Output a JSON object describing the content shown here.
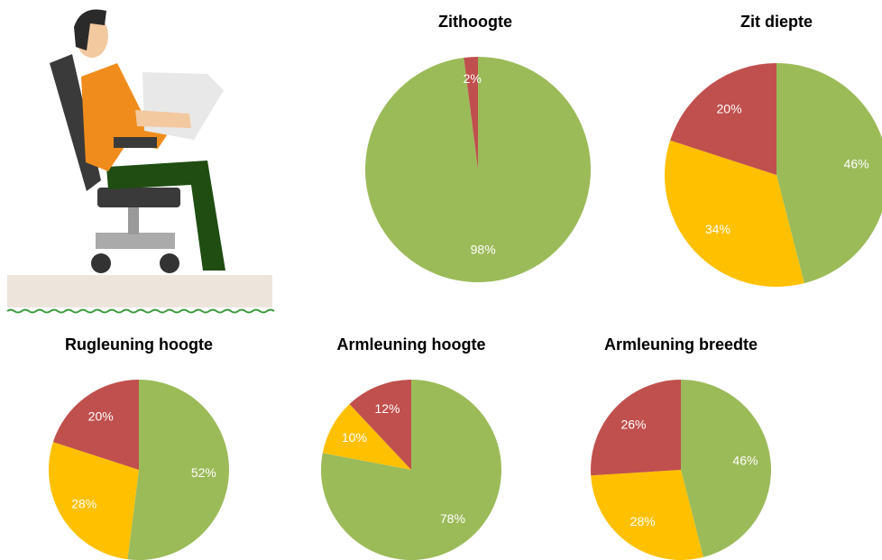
{
  "chart_data": [
    {
      "type": "pie",
      "title": "Zithoogte",
      "values": [
        98,
        2
      ],
      "value_labels": [
        "98%",
        "2%"
      ],
      "colors": [
        "#9bbb59",
        "#c0504d"
      ]
    },
    {
      "type": "pie",
      "title": "Zit diepte",
      "values": [
        46,
        34,
        20
      ],
      "value_labels": [
        "46%",
        "34%",
        "20%"
      ],
      "colors": [
        "#9bbb59",
        "#ffc000",
        "#c0504d"
      ]
    },
    {
      "type": "pie",
      "title": "Rugleuning hoogte",
      "values": [
        52,
        28,
        20
      ],
      "value_labels": [
        "52%",
        "28%",
        "20%"
      ],
      "colors": [
        "#9bbb59",
        "#ffc000",
        "#c0504d"
      ]
    },
    {
      "type": "pie",
      "title": "Armleuning hoogte",
      "values": [
        78,
        10,
        12
      ],
      "value_labels": [
        "78%",
        "10%",
        "12%"
      ],
      "colors": [
        "#9bbb59",
        "#ffc000",
        "#c0504d"
      ]
    },
    {
      "type": "pie",
      "title": "Armleuning breedte",
      "values": [
        46,
        28,
        26
      ],
      "value_labels": [
        "46%",
        "28%",
        "26%"
      ],
      "colors": [
        "#9bbb59",
        "#ffc000",
        "#c0504d"
      ]
    }
  ]
}
